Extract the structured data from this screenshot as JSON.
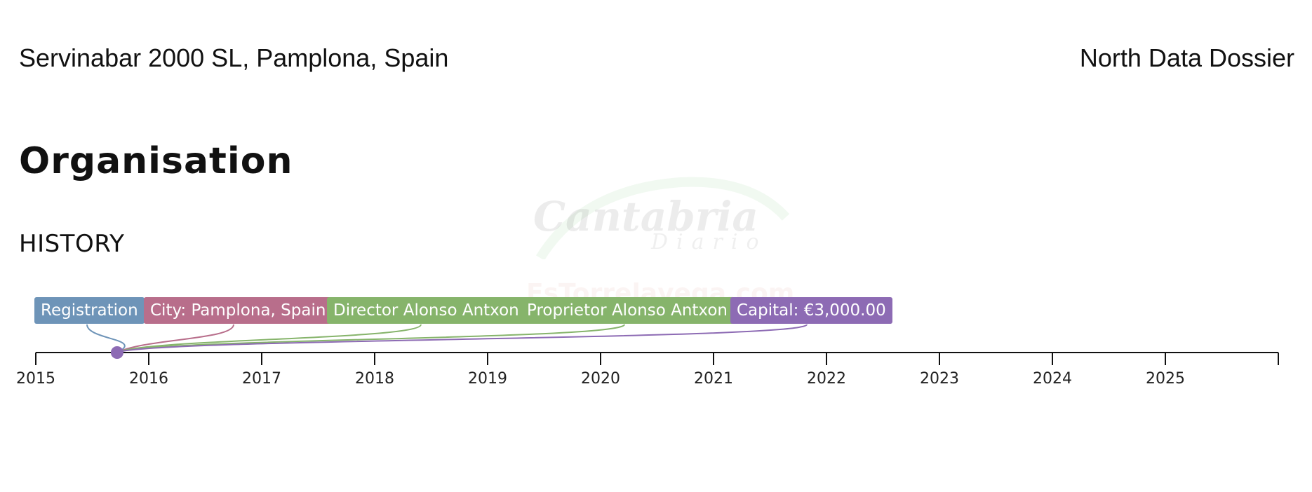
{
  "header": {
    "company": "Servinabar 2000 SL, Pamplona, Spain",
    "brand": "North Data Dossier"
  },
  "section": {
    "title": "Organisation",
    "subtitle": "HISTORY"
  },
  "watermark": {
    "main": "Cantabria",
    "sub": "Diario",
    "site": "EsTorrelavega.com"
  },
  "timeline": {
    "events": [
      {
        "label": "Registration",
        "color": "#6e94b8"
      },
      {
        "label": "City: Pamplona, Spain",
        "color": "#b86e8b"
      },
      {
        "label": "Director Alonso Antxon",
        "color": "#86b46b"
      },
      {
        "label": "Proprietor Alonso Antxon",
        "color": "#86b46b"
      },
      {
        "label": "Capital: €3,000.00",
        "color": "#8d6bb4"
      }
    ],
    "event_year": 2015.72,
    "years": [
      "2015",
      "2016",
      "2017",
      "2018",
      "2019",
      "2020",
      "2021",
      "2022",
      "2023",
      "2024",
      "2025"
    ]
  }
}
